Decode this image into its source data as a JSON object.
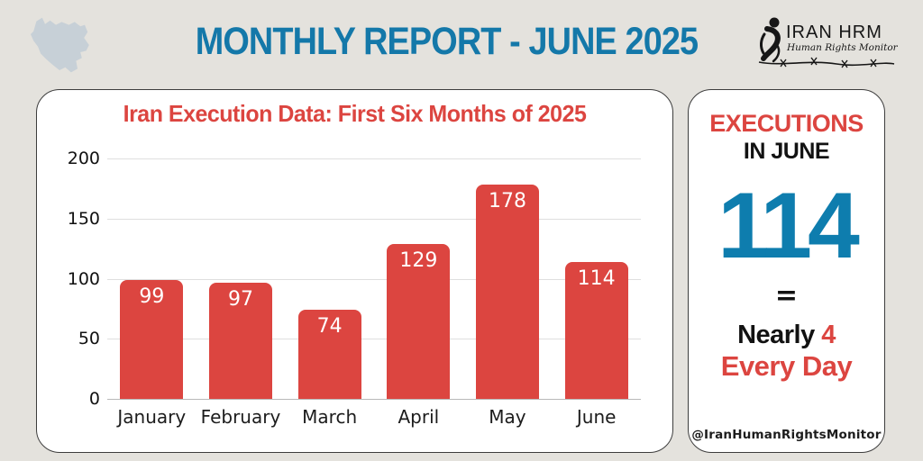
{
  "header": {
    "title": "MONTHLY REPORT - JUNE 2025",
    "map_icon": "iran-map-silhouette",
    "logo": {
      "name": "IRAN HRM",
      "subtitle": "Human Rights Monitor"
    }
  },
  "colors": {
    "background": "#E4E2DD",
    "accent_blue": "#1478A9",
    "big_number_blue": "#0E7DAE",
    "accent_red": "#DC4540",
    "bar_red": "#DC4540",
    "text_dark": "#121212",
    "card_white": "#FFFFFF",
    "map_fill": "#C7D0D7",
    "gridline": "#DFDFDF"
  },
  "chart_card": {
    "title": "Iran Execution Data: First Six Months of 2025"
  },
  "chart_data": {
    "type": "bar",
    "title": "Iran Execution Data: First Six Months of 2025",
    "categories": [
      "January",
      "February",
      "March",
      "April",
      "May",
      "June"
    ],
    "values": [
      99,
      97,
      74,
      129,
      178,
      114
    ],
    "xlabel": "",
    "ylabel": "",
    "ylim": [
      0,
      200
    ],
    "yticks": [
      0,
      50,
      100,
      150,
      200
    ],
    "grid": true,
    "legend": false,
    "bar_color": "#DC4540",
    "value_label_color": "#FFFFFF"
  },
  "side_card": {
    "heading_line1": "EXECUTIONS",
    "heading_line2": "IN JUNE",
    "big_number": "114",
    "equals": "=",
    "nearly_label": "Nearly ",
    "nearly_number": "4",
    "every_day": "Every Day",
    "handle": "@IranHumanRightsMonitor"
  }
}
